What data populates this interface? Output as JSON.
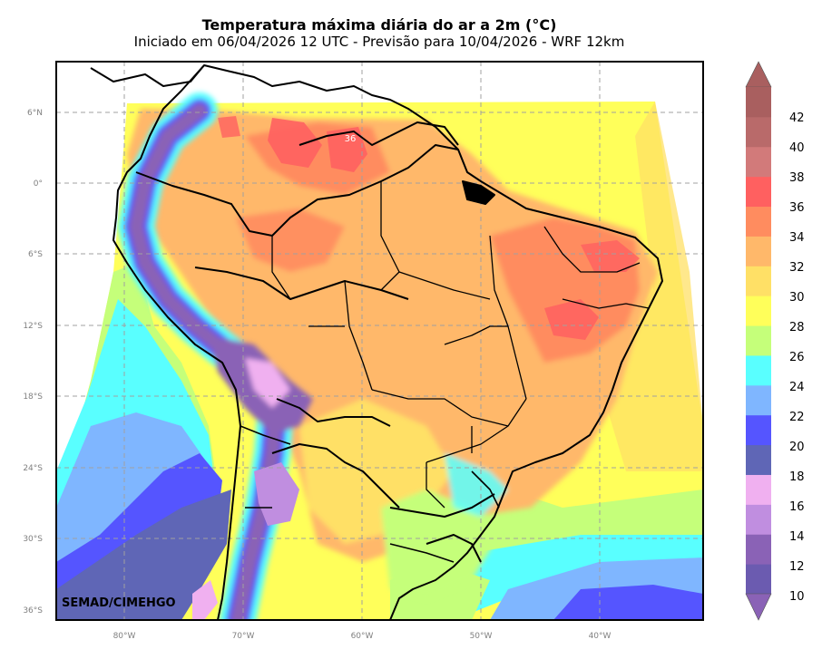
{
  "header": {
    "title": "Temperatura máxima diária do ar a 2m (°C)",
    "subtitle": "Iniciado em 06/04/2026 12 UTC - Previsão para 10/04/2026 - WRF 12km"
  },
  "map": {
    "lat_ticks": [
      "6°N",
      "0°",
      "6°S",
      "12°S",
      "18°S",
      "24°S",
      "30°S",
      "36°S"
    ],
    "lon_ticks": [
      "80°W",
      "70°W",
      "60°W",
      "50°W",
      "40°W"
    ],
    "credit": "SEMAD/CIMEHGO",
    "point_label": "36"
  },
  "colorbar": {
    "labels": [
      "42",
      "40",
      "38",
      "36",
      "34",
      "32",
      "30",
      "28",
      "26",
      "24",
      "22",
      "20",
      "18",
      "16",
      "14",
      "12",
      "10"
    ],
    "colors": [
      "#6b5bb0",
      "#8a62b6",
      "#c08ee0",
      "#f0b0f0",
      "#5f66b6",
      "#5555ff",
      "#7fb6ff",
      "#59ffff",
      "#c5ff7a",
      "#ffff5a",
      "#ffe066",
      "#ffb86a",
      "#ff8c5f",
      "#ff6060",
      "#d27a7a",
      "#b96a6a",
      "#a95f5f"
    ]
  },
  "colors": {
    "land_low": "#ffb86a",
    "land_high": "#ff8c5f",
    "ocean_cool": "#7fb6ff",
    "andes": "#8a62b6"
  }
}
